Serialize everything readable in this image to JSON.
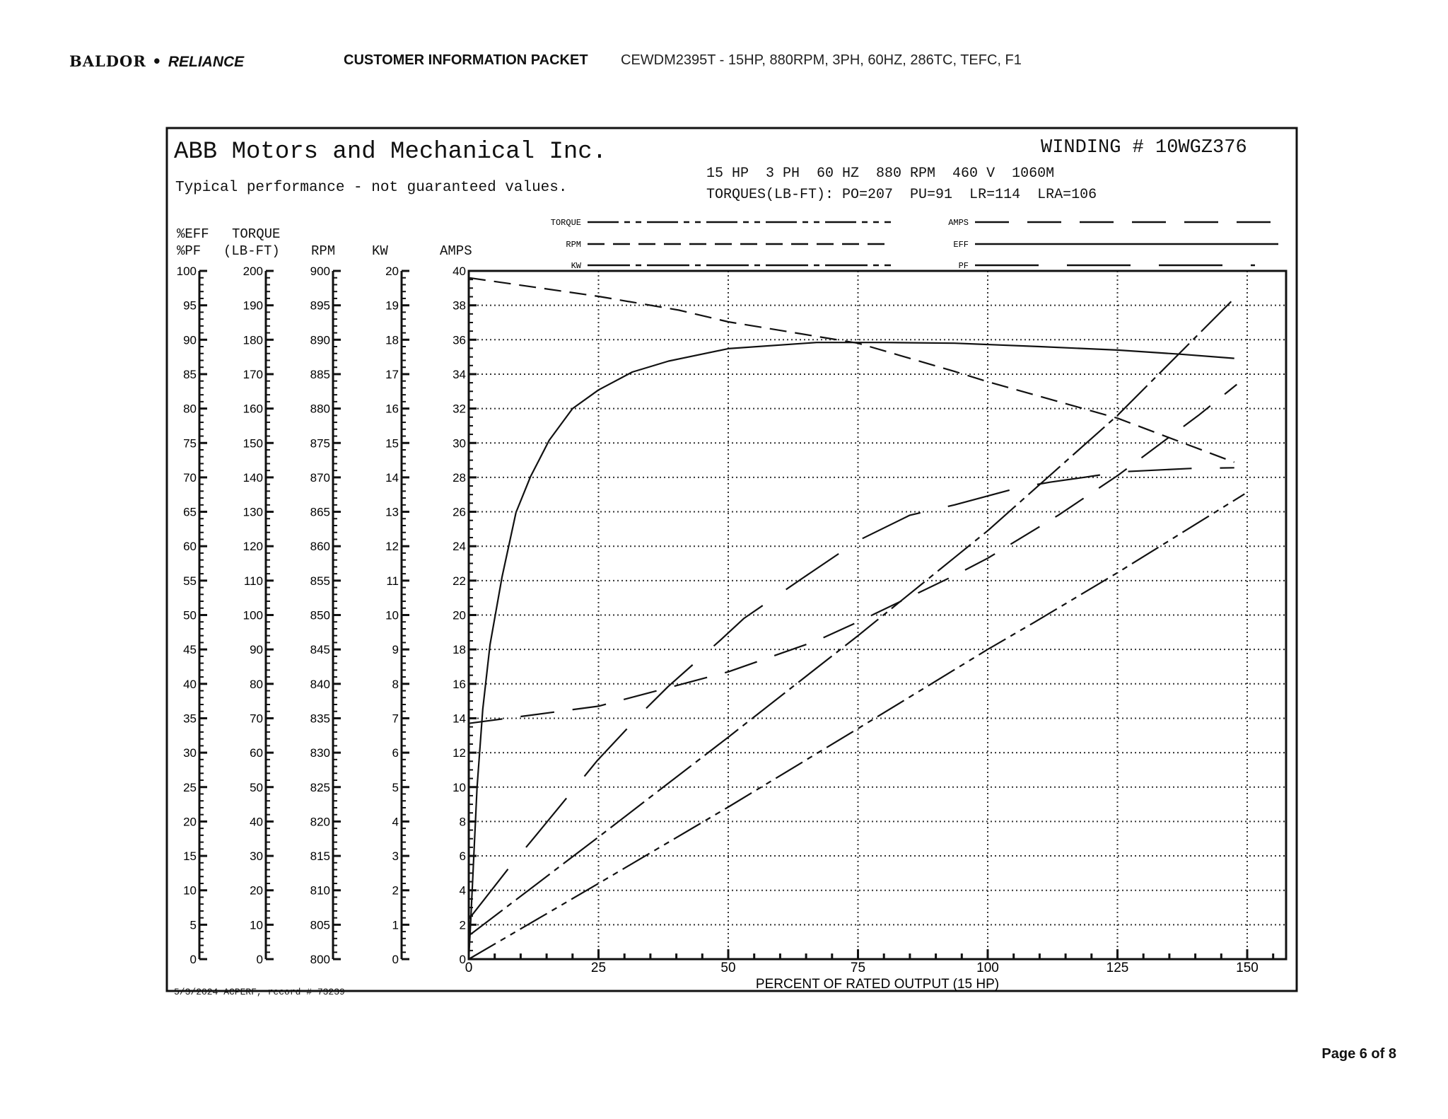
{
  "header": {
    "logo_text": "BALDOR",
    "logo_text_2": "RELIANCE",
    "packet_title": "CUSTOMER INFORMATION PACKET",
    "description": "CEWDM2395T - 15HP, 880RPM, 3PH, 60HZ, 286TC, TEFC, F1"
  },
  "sheet": {
    "company": "ABB Motors and Mechanical Inc.",
    "typical_note": "Typical performance - not guaranteed values.",
    "winding": "WINDING # 10WGZ376",
    "specs": "15 HP  3 PH  60 HZ  880 RPM  460 V  1060M",
    "torques": "TORQUES(LB-FT): PO=207  PU=91  LR=114  LRA=106",
    "footer": "5/3/2024 ACPERF, record # 73239"
  },
  "column_headers": {
    "eff": "%EFF",
    "pf": "%PF",
    "torque": "TORQUE",
    "torque_unit": "(LB-FT)",
    "rpm": "RPM",
    "kw": "KW",
    "amps": "AMPS"
  },
  "page": {
    "number_label": "Page 6 of 8"
  },
  "chart_data": {
    "type": "line",
    "xlabel": "PERCENT OF RATED OUTPUT (15 HP)",
    "xlim": [
      0,
      158
    ],
    "xticks": [
      0,
      25,
      50,
      75,
      100,
      125,
      150
    ],
    "grid": true,
    "legend_position": "top",
    "axes": {
      "eff_pf": {
        "range": [
          0,
          100
        ],
        "ticks": [
          0,
          5,
          10,
          15,
          20,
          25,
          30,
          35,
          40,
          45,
          50,
          55,
          60,
          65,
          70,
          75,
          80,
          85,
          90,
          95,
          100
        ]
      },
      "torque": {
        "range": [
          0,
          200
        ],
        "ticks": [
          0,
          10,
          20,
          30,
          40,
          50,
          60,
          70,
          80,
          90,
          100,
          110,
          120,
          130,
          140,
          150,
          160,
          170,
          180,
          190,
          200
        ]
      },
      "rpm": {
        "range": [
          800,
          900
        ],
        "ticks": [
          800,
          805,
          810,
          815,
          820,
          825,
          830,
          835,
          840,
          845,
          850,
          855,
          860,
          865,
          870,
          875,
          880,
          885,
          890,
          895,
          900
        ]
      },
      "kw": {
        "range": [
          0,
          20
        ],
        "ticks": [
          0,
          1,
          2,
          3,
          4,
          5,
          6,
          7,
          8,
          9,
          10,
          11,
          12,
          13,
          14,
          15,
          16,
          17,
          18,
          19,
          20
        ]
      },
      "amps": {
        "range": [
          0,
          40
        ],
        "ticks": [
          0,
          2,
          4,
          6,
          8,
          10,
          12,
          14,
          16,
          18,
          20,
          22,
          24,
          26,
          28,
          30,
          32,
          34,
          36,
          38,
          40
        ]
      }
    },
    "series": [
      {
        "name": "TORQUE",
        "axis": "torque",
        "x": [
          0,
          25,
          50,
          75,
          100,
          109,
          125,
          149.5
        ],
        "y": [
          0,
          22,
          44.2,
          67,
          90,
          97.9,
          112.3,
          135.2
        ]
      },
      {
        "name": "RPM",
        "axis": "rpm",
        "x": [
          0,
          25,
          40.5,
          50,
          75,
          93.6,
          100,
          125,
          147.5
        ],
        "y": [
          899,
          896.3,
          894.3,
          892.6,
          889.5,
          885.4,
          883.9,
          878.6,
          872.2
        ]
      },
      {
        "name": "KW",
        "axis": "kw",
        "x": [
          0,
          25,
          50,
          75,
          93.6,
          100,
          125,
          147.5
        ],
        "y": [
          0.68,
          3.55,
          6.45,
          9.4,
          11.67,
          12.45,
          15.8,
          19.2
        ]
      },
      {
        "name": "AMPS",
        "axis": "amps",
        "x": [
          0,
          25,
          50,
          67,
          75,
          93.6,
          100,
          113.6,
          125,
          140.6,
          148
        ],
        "y": [
          13.7,
          14.7,
          16.7,
          18.5,
          19.6,
          22.3,
          23.3,
          25.8,
          28.1,
          31.6,
          33.4
        ]
      },
      {
        "name": "EFF",
        "axis": "eff_pf",
        "x": [
          0,
          0.4,
          1.6,
          2.7,
          4.1,
          6.4,
          9.1,
          11.9,
          15.5,
          20,
          25,
          31.5,
          38.5,
          50,
          67,
          80,
          93.6,
          110,
          125,
          137,
          147.5
        ],
        "y": [
          0,
          5.8,
          24.9,
          36.3,
          45.7,
          55.5,
          64.9,
          70.1,
          75.4,
          80,
          82.7,
          85.3,
          86.9,
          88.7,
          89.6,
          89.6,
          89.5,
          89,
          88.5,
          87.9,
          87.3
        ]
      },
      {
        "name": "PF",
        "axis": "eff_pf",
        "x": [
          0,
          8.2,
          12.1,
          20.8,
          24.7,
          34,
          38.4,
          48.7,
          53,
          64.4,
          75,
          85,
          93.6,
          100,
          105.9,
          112,
          119.5,
          125.6,
          139,
          147.5
        ],
        "y": [
          5.8,
          13.7,
          17.2,
          25.2,
          28.8,
          36.3,
          39.6,
          46.5,
          49.5,
          55.4,
          60.8,
          64.5,
          66,
          67.3,
          68.5,
          69.3,
          70.1,
          70.8,
          71.3,
          71.4
        ]
      }
    ]
  }
}
